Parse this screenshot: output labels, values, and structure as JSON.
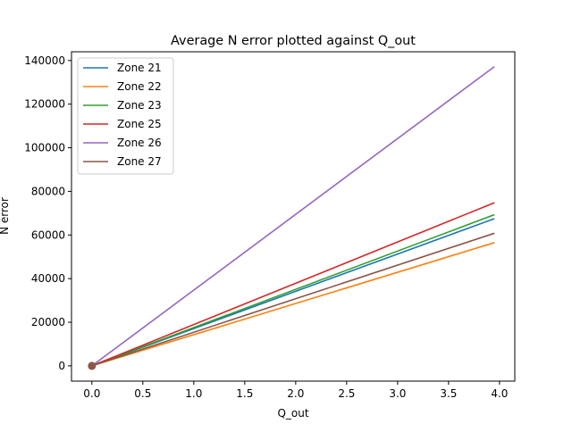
{
  "chart_data": {
    "type": "line",
    "title": "Average N error plotted against Q_out",
    "xlabel": "Q_out",
    "ylabel": "N error",
    "xlim": [
      -0.2,
      4.15
    ],
    "ylim": [
      -7000,
      144000
    ],
    "x_ticks": [
      0.0,
      0.5,
      1.0,
      1.5,
      2.0,
      2.5,
      3.0,
      3.5,
      4.0
    ],
    "x_tick_labels": [
      "0.0",
      "0.5",
      "1.0",
      "1.5",
      "2.0",
      "2.5",
      "3.0",
      "3.5",
      "4.0"
    ],
    "y_ticks": [
      0,
      20000,
      40000,
      60000,
      80000,
      100000,
      120000,
      140000
    ],
    "y_tick_labels": [
      "0",
      "20000",
      "40000",
      "60000",
      "80000",
      "100000",
      "120000",
      "140000"
    ],
    "grid": false,
    "legend_position": "top-left",
    "series": [
      {
        "name": "Zone 21",
        "color": "#1f77b4",
        "x": [
          0.0,
          3.95
        ],
        "y": [
          0,
          67500
        ]
      },
      {
        "name": "Zone 22",
        "color": "#ff7f0e",
        "x": [
          0.0,
          3.95
        ],
        "y": [
          0,
          56500
        ]
      },
      {
        "name": "Zone 23",
        "color": "#2ca02c",
        "x": [
          0.0,
          3.95
        ],
        "y": [
          0,
          69300
        ]
      },
      {
        "name": "Zone 25",
        "color": "#d62728",
        "x": [
          0.0,
          3.95
        ],
        "y": [
          0,
          74800
        ]
      },
      {
        "name": "Zone 26",
        "color": "#9467bd",
        "x": [
          0.0,
          3.95
        ],
        "y": [
          0,
          137200
        ]
      },
      {
        "name": "Zone 27",
        "color": "#8c564b",
        "x": [
          0.0,
          3.95
        ],
        "y": [
          0,
          60800
        ]
      }
    ],
    "marker_points": [
      {
        "x": 0.0,
        "y": 0,
        "color": "#8c564b"
      }
    ]
  }
}
